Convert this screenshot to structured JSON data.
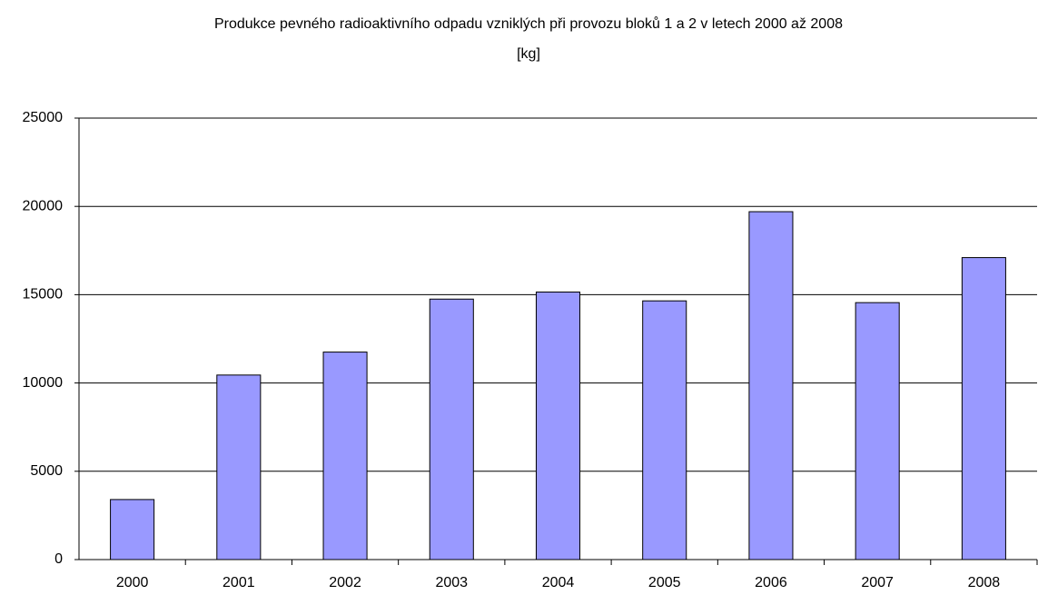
{
  "chart_data": {
    "type": "bar",
    "title": "Produkce pevného radioaktivního odpadu vzniklých při provozu bloků 1 a 2 v letech 2000 až 2008",
    "subtitle": "[kg]",
    "categories": [
      "2000",
      "2001",
      "2002",
      "2003",
      "2004",
      "2005",
      "2006",
      "2007",
      "2008"
    ],
    "values": [
      3400,
      10450,
      11750,
      14750,
      15150,
      14650,
      19700,
      14550,
      17100
    ],
    "color": "#9999ff",
    "ylim": [
      0,
      25000
    ],
    "yticks": [
      0,
      5000,
      10000,
      15000,
      20000,
      25000
    ],
    "grid": true
  }
}
